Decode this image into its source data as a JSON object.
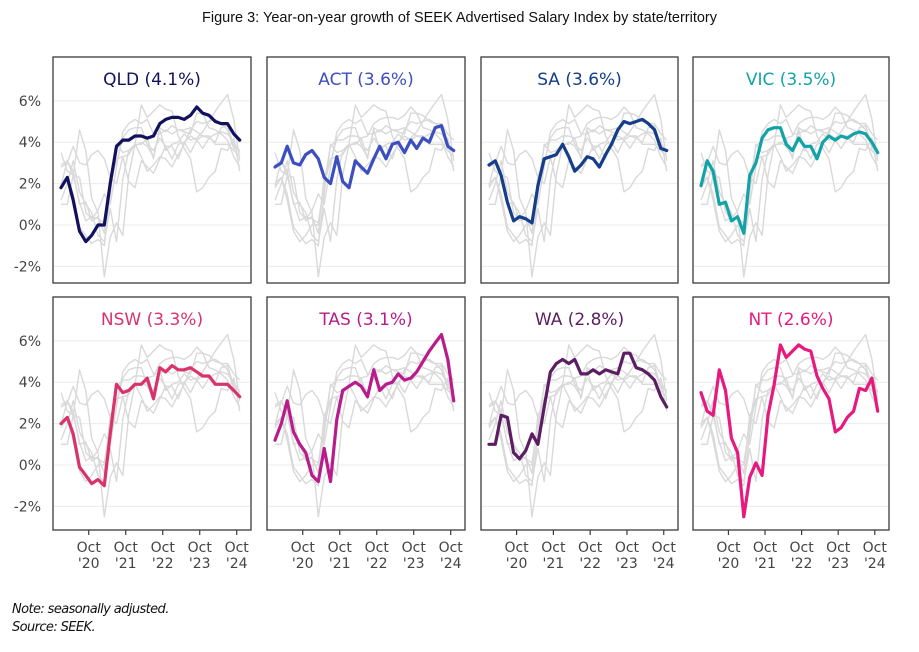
{
  "chart_data": {
    "type": "line",
    "title": "Figure 3: Year-on-year growth of SEEK Advertised Salary Index by state/territory",
    "xlabel": "",
    "ylabel": "",
    "ylim": [
      -3,
      7.5
    ],
    "yticks": [
      -2,
      0,
      2,
      4,
      6
    ],
    "ytick_labels": [
      "-2%",
      "0%",
      "2%",
      "4%",
      "6%"
    ],
    "x_start": "Jan 2020",
    "x_step": "2 months",
    "xlim_years": [
      2020.0,
      2024.92
    ],
    "xticks": [
      2020.75,
      2021.75,
      2022.75,
      2023.75,
      2024.75
    ],
    "xtick_labels": [
      [
        "Oct",
        "'20"
      ],
      [
        "Oct",
        "'21"
      ],
      [
        "Oct",
        "'22"
      ],
      [
        "Oct",
        "'23"
      ],
      [
        "Oct",
        "'24"
      ]
    ],
    "x": [
      2020.0,
      2020.17,
      2020.33,
      2020.5,
      2020.67,
      2020.83,
      2021.0,
      2021.17,
      2021.33,
      2021.5,
      2021.67,
      2021.83,
      2022.0,
      2022.17,
      2022.33,
      2022.5,
      2022.67,
      2022.83,
      2023.0,
      2023.17,
      2023.33,
      2023.5,
      2023.67,
      2023.83,
      2024.0,
      2024.17,
      2024.33,
      2024.5,
      2024.67,
      2024.83
    ],
    "grid": "horizontal",
    "legend": "none (panel titles)",
    "layout": "facets 2x4",
    "background_series_color": "#d9d9d9",
    "series": [
      {
        "name": "QLD",
        "label": "QLD (4.1%)",
        "latest": 4.1,
        "color": "#11115e",
        "values": [
          1.8,
          2.3,
          1.2,
          -0.3,
          -0.8,
          -0.5,
          0.0,
          0.0,
          2.0,
          3.8,
          4.1,
          4.1,
          4.3,
          4.3,
          4.2,
          4.3,
          4.9,
          5.1,
          5.2,
          5.2,
          5.1,
          5.3,
          5.7,
          5.4,
          5.3,
          5.0,
          4.9,
          4.9,
          4.4,
          4.1
        ]
      },
      {
        "name": "ACT",
        "label": "ACT (3.6%)",
        "latest": 3.6,
        "color": "#3d4fbf",
        "values": [
          2.8,
          3.0,
          3.8,
          3.0,
          2.9,
          3.4,
          3.6,
          3.2,
          2.3,
          2.0,
          3.3,
          2.1,
          1.8,
          3.1,
          2.8,
          2.5,
          3.2,
          3.8,
          3.2,
          3.9,
          4.0,
          3.5,
          4.1,
          3.7,
          4.2,
          4.0,
          4.7,
          4.8,
          3.8,
          3.6
        ]
      },
      {
        "name": "SA",
        "label": "SA (3.6%)",
        "latest": 3.6,
        "color": "#143d8a",
        "values": [
          2.9,
          3.1,
          2.4,
          1.1,
          0.2,
          0.4,
          0.3,
          0.1,
          1.9,
          3.2,
          3.3,
          3.4,
          3.9,
          3.3,
          2.6,
          2.9,
          3.3,
          3.2,
          2.8,
          3.4,
          3.9,
          4.6,
          5.0,
          4.9,
          5.0,
          5.1,
          4.9,
          4.6,
          3.7,
          3.6
        ]
      },
      {
        "name": "VIC",
        "label": "VIC (3.5%)",
        "latest": 3.5,
        "color": "#12a3a8",
        "values": [
          1.9,
          3.1,
          2.6,
          1.0,
          1.1,
          0.2,
          0.4,
          -0.4,
          2.4,
          3.0,
          4.2,
          4.6,
          4.7,
          4.7,
          3.9,
          3.6,
          4.2,
          3.8,
          3.8,
          3.2,
          4.0,
          4.3,
          4.1,
          4.3,
          4.2,
          4.4,
          4.5,
          4.4,
          4.0,
          3.5
        ]
      },
      {
        "name": "NSW",
        "label": "NSW (3.3%)",
        "latest": 3.3,
        "color": "#d9336b",
        "values": [
          2.0,
          2.3,
          1.5,
          -0.1,
          -0.5,
          -0.9,
          -0.7,
          -1.0,
          1.5,
          3.9,
          3.5,
          3.6,
          3.9,
          3.9,
          4.2,
          3.2,
          4.7,
          4.5,
          4.8,
          4.6,
          4.6,
          4.7,
          4.5,
          4.3,
          4.3,
          3.9,
          3.9,
          3.9,
          3.6,
          3.3
        ]
      },
      {
        "name": "TAS",
        "label": "TAS (3.1%)",
        "latest": 3.1,
        "color": "#b81c8c",
        "values": [
          1.2,
          2.0,
          3.1,
          1.6,
          1.0,
          0.6,
          -0.5,
          -0.8,
          0.8,
          -0.8,
          2.2,
          3.6,
          3.8,
          4.0,
          3.8,
          3.3,
          4.6,
          3.6,
          3.9,
          4.0,
          4.4,
          4.1,
          4.2,
          4.5,
          5.0,
          5.5,
          5.9,
          6.3,
          5.1,
          3.1
        ]
      },
      {
        "name": "WA",
        "label": "WA (2.8%)",
        "latest": 2.8,
        "color": "#5c1e63",
        "values": [
          1.0,
          1.0,
          2.4,
          2.3,
          0.6,
          0.3,
          0.7,
          1.5,
          1.0,
          2.8,
          4.5,
          4.9,
          5.1,
          4.9,
          5.1,
          4.4,
          4.4,
          4.6,
          4.4,
          4.6,
          4.5,
          4.4,
          5.4,
          5.4,
          4.7,
          4.6,
          4.4,
          4.1,
          3.3,
          2.8
        ]
      },
      {
        "name": "NT",
        "label": "NT (2.6%)",
        "latest": 2.6,
        "color": "#e6197f",
        "values": [
          3.5,
          2.6,
          2.4,
          4.6,
          3.6,
          1.3,
          0.6,
          -2.5,
          -0.6,
          0.1,
          -0.5,
          2.4,
          3.9,
          5.8,
          5.2,
          5.5,
          5.8,
          5.6,
          5.5,
          4.3,
          3.7,
          3.2,
          1.6,
          1.8,
          2.3,
          2.6,
          3.7,
          3.6,
          4.2,
          2.6
        ]
      }
    ]
  },
  "notes": {
    "note": "Note: seasonally adjusted.",
    "source": "Source: SEEK."
  }
}
